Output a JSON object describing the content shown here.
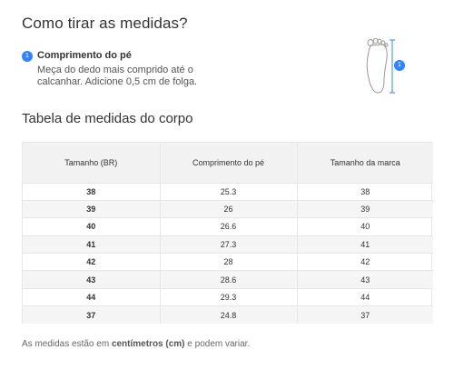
{
  "how_to": {
    "title": "Como tirar as medidas?",
    "step": {
      "number": "1",
      "title": "Comprimento do pé",
      "description": "Meça do dedo mais comprido até o calcanhar. Adicione 0,5 cm de folga."
    },
    "illustration": {
      "icon": "foot-outline-icon",
      "marker_number": "1",
      "marker_color": "#3483fa"
    }
  },
  "table": {
    "title": "Tabela de medidas do corpo",
    "headers": [
      "Tamanho (BR)",
      "Comprimento do pé",
      "Tamanho da marca"
    ],
    "rows": [
      [
        "38",
        "25.3",
        "38"
      ],
      [
        "39",
        "26",
        "39"
      ],
      [
        "40",
        "26.6",
        "40"
      ],
      [
        "41",
        "27.3",
        "41"
      ],
      [
        "42",
        "28",
        "42"
      ],
      [
        "43",
        "28.6",
        "43"
      ],
      [
        "44",
        "29.3",
        "44"
      ],
      [
        "37",
        "24.8",
        "37"
      ]
    ]
  },
  "footnote": {
    "prefix": "As medidas estão em ",
    "unit": "centímetros (cm)",
    "suffix": " e podem variar."
  },
  "colors": {
    "accent": "#3483fa",
    "header_bg": "#f2f2f2",
    "stripe_bg": "#f5f5f5",
    "border": "#e6e6e6"
  }
}
